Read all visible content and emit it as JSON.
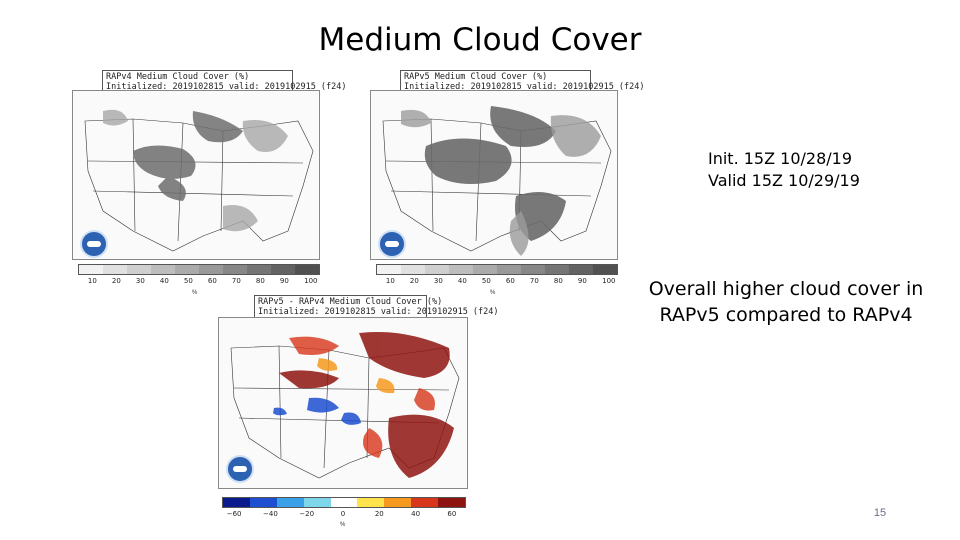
{
  "slide": {
    "title": "Medium Cloud Cover",
    "page_number": "15"
  },
  "panels": {
    "rapv4": {
      "header_line1": "RAPv4 Medium Cloud Cover (%)",
      "header_line2": "Initialized: 2019102815 valid: 2019102915 (f24)",
      "ticks": [
        "10",
        "20",
        "30",
        "40",
        "50",
        "60",
        "70",
        "80",
        "90",
        "100"
      ],
      "unit": "%"
    },
    "rapv5": {
      "header_line1": "RAPv5 Medium Cloud Cover (%)",
      "header_line2": "Initialized: 2019102815 valid: 2019102915 (f24)",
      "ticks": [
        "10",
        "20",
        "30",
        "40",
        "50",
        "60",
        "70",
        "80",
        "90",
        "100"
      ],
      "unit": "%"
    },
    "diff": {
      "header_line1": "RAPv5 - RAPv4 Medium Cloud Cover (%)",
      "header_line2": "Initialized: 2019102815 valid: 2019102915 (f24)",
      "ticks": [
        "−60",
        "−40",
        "−20",
        "0",
        "20",
        "40",
        "60"
      ],
      "unit": "%"
    }
  },
  "info": {
    "init": "Init. 15Z 10/28/19",
    "valid": "Valid 15Z 10/29/19"
  },
  "summary": {
    "line1": "Overall higher cloud cover in",
    "line2": "RAPv5 compared to RAPv4"
  },
  "colors": {
    "gray_scale": [
      "#f2f2f2",
      "#e0e0e0",
      "#cfcfcf",
      "#bdbdbd",
      "#ababab",
      "#999999",
      "#878787",
      "#757575",
      "#636363",
      "#515151"
    ],
    "diverging": [
      "#0a1a8c",
      "#1f4fd1",
      "#3aa0e8",
      "#7fd6e8",
      "#ffffff",
      "#ffe34d",
      "#f59a1e",
      "#d8361a",
      "#8e1410"
    ]
  }
}
